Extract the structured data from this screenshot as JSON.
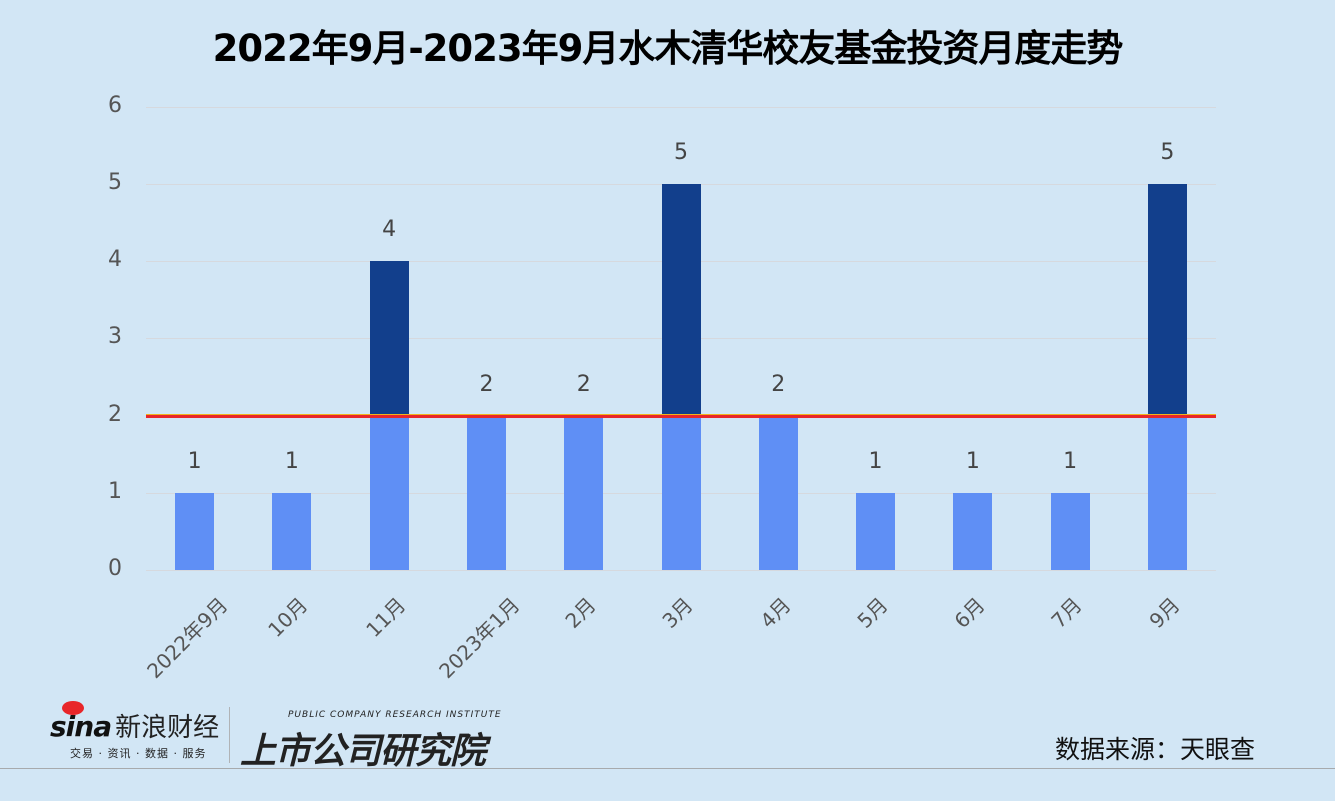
{
  "title": "2022年9月-2023年9月水木清华校友基金投资月度走势",
  "chart_data": {
    "type": "bar",
    "title": "2022年9月-2023年9月水木清华校友基金投资月度走势",
    "xlabel": "",
    "ylabel": "",
    "ylim": [
      0,
      6
    ],
    "yticks": [
      0,
      1,
      2,
      3,
      4,
      5,
      6
    ],
    "grid": true,
    "categories": [
      "2022年9月",
      "10月",
      "11月",
      "2023年1月",
      "2月",
      "3月",
      "4月",
      "5月",
      "6月",
      "7月",
      "9月"
    ],
    "values": [
      1,
      1,
      4,
      2,
      2,
      5,
      2,
      1,
      1,
      1,
      5
    ],
    "data_labels": [
      "1",
      "1",
      "4",
      "2",
      "2",
      "5",
      "2",
      "1",
      "1",
      "1",
      "5"
    ],
    "reference_line": {
      "value": 2,
      "color": "#e8262a",
      "orientation": "horizontal"
    },
    "colors": {
      "below_reference": "#5f8ff5",
      "above_reference": "#123f8c"
    },
    "legend": null
  },
  "footer": {
    "sina_brand": "sina",
    "sina_name": "新浪财经",
    "sina_tagline": "交易 · 资讯 · 数据 · 服务",
    "institute_en": "PUBLIC COMPANY RESEARCH INSTITUTE",
    "institute_cn": "上市公司研究院",
    "source": "数据来源：天眼查"
  }
}
